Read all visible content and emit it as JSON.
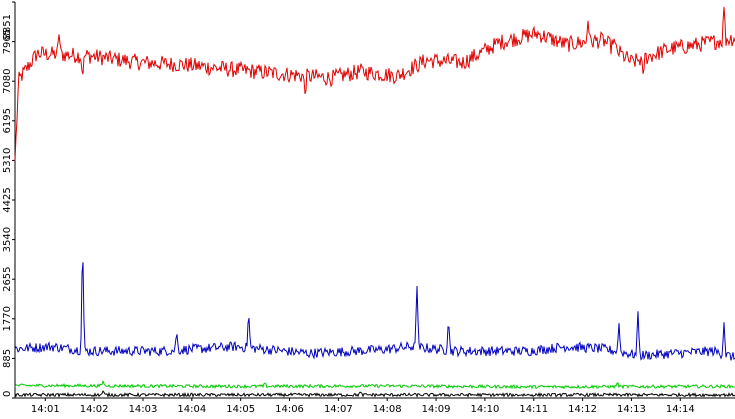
{
  "chart_data": {
    "type": "line",
    "title": "",
    "xlabel": "",
    "ylabel": "",
    "grid": false,
    "legend": "none",
    "yticks": [
      "0",
      "885",
      "1770",
      "2655",
      "3540",
      "4425",
      "5310",
      "6195",
      "7080",
      "7965",
      "8851"
    ],
    "xticks": [
      "14:01",
      "14:02",
      "14:03",
      "14:04",
      "14:05",
      "14:06",
      "14:07",
      "14:08",
      "14:09",
      "14:10",
      "14:11",
      "14:12",
      "14:13",
      "14:14"
    ],
    "ylim": [
      0,
      8851
    ],
    "x_minutes_range": [
      14.0,
      14.98
    ],
    "series": [
      {
        "color": "#e00000",
        "base_points": [
          [
            14.0,
            5300
          ],
          [
            14.005,
            7100
          ],
          [
            14.03,
            7700
          ],
          [
            14.1,
            7650
          ],
          [
            14.17,
            7500
          ],
          [
            14.23,
            7450
          ],
          [
            14.29,
            7350
          ],
          [
            14.36,
            7250
          ],
          [
            14.43,
            7150
          ],
          [
            14.47,
            7300
          ],
          [
            14.52,
            7200
          ],
          [
            14.56,
            7550
          ],
          [
            14.61,
            7500
          ],
          [
            14.66,
            7950
          ],
          [
            14.71,
            8150
          ],
          [
            14.75,
            7900
          ],
          [
            14.8,
            8000
          ],
          [
            14.84,
            7500
          ],
          [
            14.89,
            7800
          ],
          [
            14.93,
            7900
          ],
          [
            14.98,
            8050
          ]
        ],
        "noise": 180,
        "spikes": [
          [
            14.06,
            8150
          ],
          [
            14.092,
            7150
          ],
          [
            14.395,
            6750
          ],
          [
            14.78,
            8450
          ],
          [
            14.815,
            8050
          ],
          [
            14.855,
            7200
          ],
          [
            14.965,
            8750
          ]
        ]
      },
      {
        "color": "#0000c0",
        "base_points": [
          [
            14.0,
            1100
          ],
          [
            14.05,
            1150
          ],
          [
            14.1,
            1050
          ],
          [
            14.2,
            1050
          ],
          [
            14.3,
            1150
          ],
          [
            14.4,
            1000
          ],
          [
            14.5,
            1080
          ],
          [
            14.54,
            1150
          ],
          [
            14.6,
            1050
          ],
          [
            14.7,
            1050
          ],
          [
            14.75,
            1150
          ],
          [
            14.8,
            1100
          ],
          [
            14.85,
            950
          ],
          [
            14.9,
            1000
          ],
          [
            14.95,
            1050
          ],
          [
            14.98,
            900
          ]
        ],
        "noise": 110,
        "spikes": [
          [
            14.092,
            3600
          ],
          [
            14.22,
            1500
          ],
          [
            14.318,
            1950
          ],
          [
            14.547,
            2600
          ],
          [
            14.59,
            1800
          ],
          [
            14.822,
            1700
          ],
          [
            14.848,
            1950
          ],
          [
            14.965,
            1700
          ]
        ]
      },
      {
        "color": "#00cc00",
        "base_points": [
          [
            14.0,
            280
          ],
          [
            14.3,
            260
          ],
          [
            14.5,
            270
          ],
          [
            14.7,
            250
          ],
          [
            14.98,
            260
          ]
        ],
        "noise": 35,
        "spikes": [
          [
            14.12,
            380
          ],
          [
            14.34,
            340
          ],
          [
            14.82,
            360
          ]
        ]
      },
      {
        "color": "#000000",
        "base_points": [
          [
            14.0,
            70
          ],
          [
            14.98,
            70
          ]
        ],
        "noise": 35,
        "spikes": [
          [
            14.12,
            160
          ],
          [
            14.47,
            140
          ]
        ]
      }
    ]
  }
}
